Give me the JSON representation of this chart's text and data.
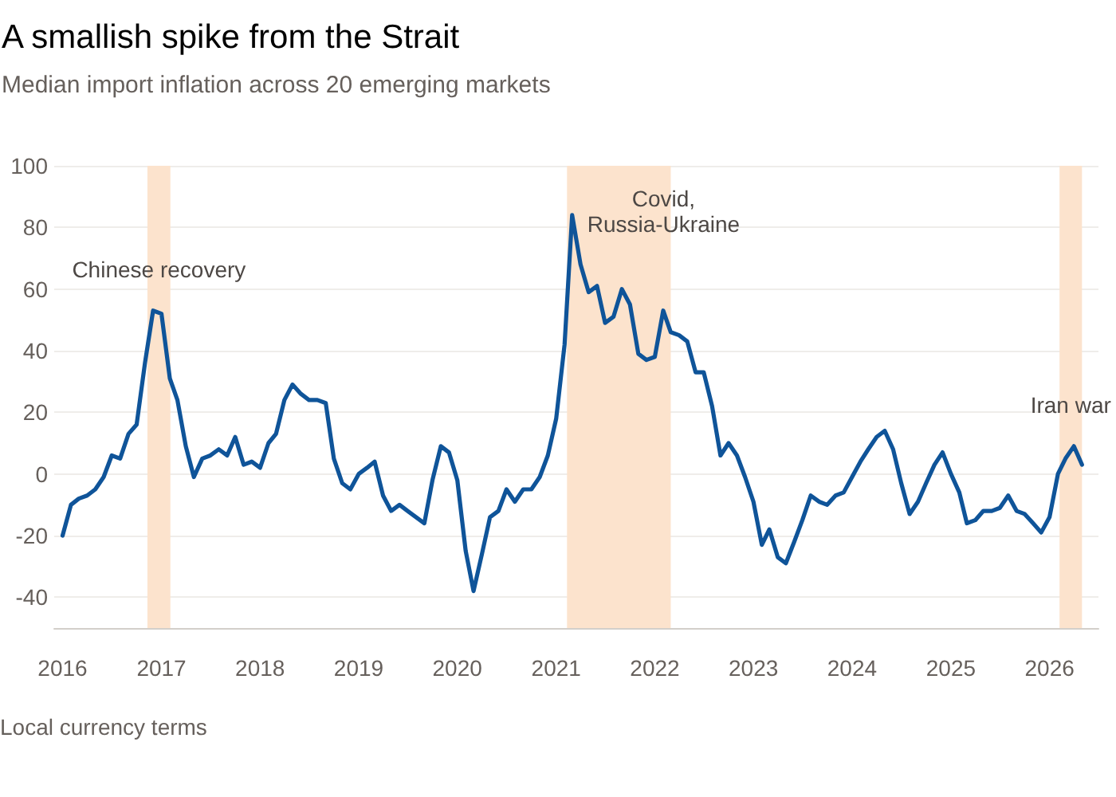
{
  "chart_data": {
    "type": "line",
    "title": "A smallish spike from the Strait",
    "subtitle": "Median import inflation across 20 emerging markets",
    "x": [
      "2016-01",
      "2016-02",
      "2016-03",
      "2016-04",
      "2016-05",
      "2016-06",
      "2016-07",
      "2016-08",
      "2016-09",
      "2016-10",
      "2016-11",
      "2016-12",
      "2017-01",
      "2017-02",
      "2017-03",
      "2017-04",
      "2017-05",
      "2017-06",
      "2017-07",
      "2017-08",
      "2017-09",
      "2017-10",
      "2017-11",
      "2017-12",
      "2018-01",
      "2018-02",
      "2018-03",
      "2018-04",
      "2018-05",
      "2018-06",
      "2018-07",
      "2018-08",
      "2018-09",
      "2018-10",
      "2018-11",
      "2018-12",
      "2019-01",
      "2019-02",
      "2019-03",
      "2019-04",
      "2019-05",
      "2019-06",
      "2019-07",
      "2019-08",
      "2019-09",
      "2019-10",
      "2019-11",
      "2019-12",
      "2020-01",
      "2020-02",
      "2020-03",
      "2020-04",
      "2020-05",
      "2020-06",
      "2020-07",
      "2020-08",
      "2020-09",
      "2020-10",
      "2020-11",
      "2020-12",
      "2021-01",
      "2021-02",
      "2021-03",
      "2021-04",
      "2021-05",
      "2021-06",
      "2021-07",
      "2021-08",
      "2021-09",
      "2021-10",
      "2021-11",
      "2021-12",
      "2022-01",
      "2022-02",
      "2022-03",
      "2022-04",
      "2022-05",
      "2022-06",
      "2022-07",
      "2022-08",
      "2022-09",
      "2022-10",
      "2022-11",
      "2022-12",
      "2023-01",
      "2023-02",
      "2023-03",
      "2023-04",
      "2023-05",
      "2023-06",
      "2023-07",
      "2023-08",
      "2023-09",
      "2023-10",
      "2023-11",
      "2023-12",
      "2024-01",
      "2024-02",
      "2024-03",
      "2024-04",
      "2024-05",
      "2024-06",
      "2024-07",
      "2024-08",
      "2024-09",
      "2024-10",
      "2024-11",
      "2024-12",
      "2025-01",
      "2025-02",
      "2025-03",
      "2025-04",
      "2025-05",
      "2025-06",
      "2025-07",
      "2025-08",
      "2025-09",
      "2025-10",
      "2025-11",
      "2025-12",
      "2026-01",
      "2026-02",
      "2026-03",
      "2026-04",
      "2026-05"
    ],
    "values": [
      -20,
      -10,
      -8,
      -7,
      -5,
      -1,
      6,
      5,
      13,
      16,
      36,
      53,
      52,
      31,
      24,
      9,
      -1,
      5,
      6,
      8,
      6,
      12,
      3,
      4,
      2,
      10,
      13,
      24,
      29,
      26,
      24,
      24,
      23,
      5,
      -3,
      -5,
      0,
      2,
      4,
      -7,
      -12,
      -10,
      -12,
      -14,
      -16,
      -2,
      9,
      7,
      -2,
      -25,
      -38,
      -26,
      -14,
      -12,
      -5,
      -9,
      -5,
      -5,
      -1,
      6,
      18,
      42,
      84,
      68,
      59,
      61,
      49,
      51,
      60,
      55,
      39,
      37,
      38,
      53,
      46,
      45,
      43,
      33,
      33,
      22,
      6,
      10,
      6,
      -1,
      -9,
      -23,
      -18,
      -27,
      -29,
      -22,
      -15,
      -7,
      -9,
      -10,
      -7,
      -6,
      -1,
      4,
      8,
      12,
      14,
      8,
      -3,
      -13,
      -9,
      -3,
      3,
      7,
      0,
      -6,
      -16,
      -15,
      -12,
      -12,
      -11,
      -7,
      -12,
      -13,
      -16,
      -19,
      -14,
      0,
      5,
      9,
      3
    ],
    "color": "#0f5499",
    "xlim": [
      "2015-12",
      "2026-07"
    ],
    "xticks": [
      "2016",
      "2017",
      "2018",
      "2019",
      "2020",
      "2021",
      "2022",
      "2023",
      "2024",
      "2025",
      "2026"
    ],
    "ylim": [
      -50,
      100
    ],
    "yticks": [
      -40,
      -20,
      0,
      20,
      40,
      60,
      80,
      100
    ],
    "grid": "y",
    "bands": [
      {
        "axis": "x",
        "from": "2016-11-10",
        "to": "2017-02-03",
        "color": "#fce3cd",
        "label": "Chinese recovery"
      },
      {
        "axis": "x",
        "from": "2021-02-10",
        "to": "2022-03-01",
        "color": "#fce3cd",
        "label": "Covid,\nRussia-Ukraine"
      },
      {
        "axis": "x",
        "from": "2026-02-07",
        "to": "2026-05-01",
        "color": "#fce3cd",
        "label": "Iran war"
      }
    ],
    "annotations": [
      "Local currency terms"
    ]
  }
}
